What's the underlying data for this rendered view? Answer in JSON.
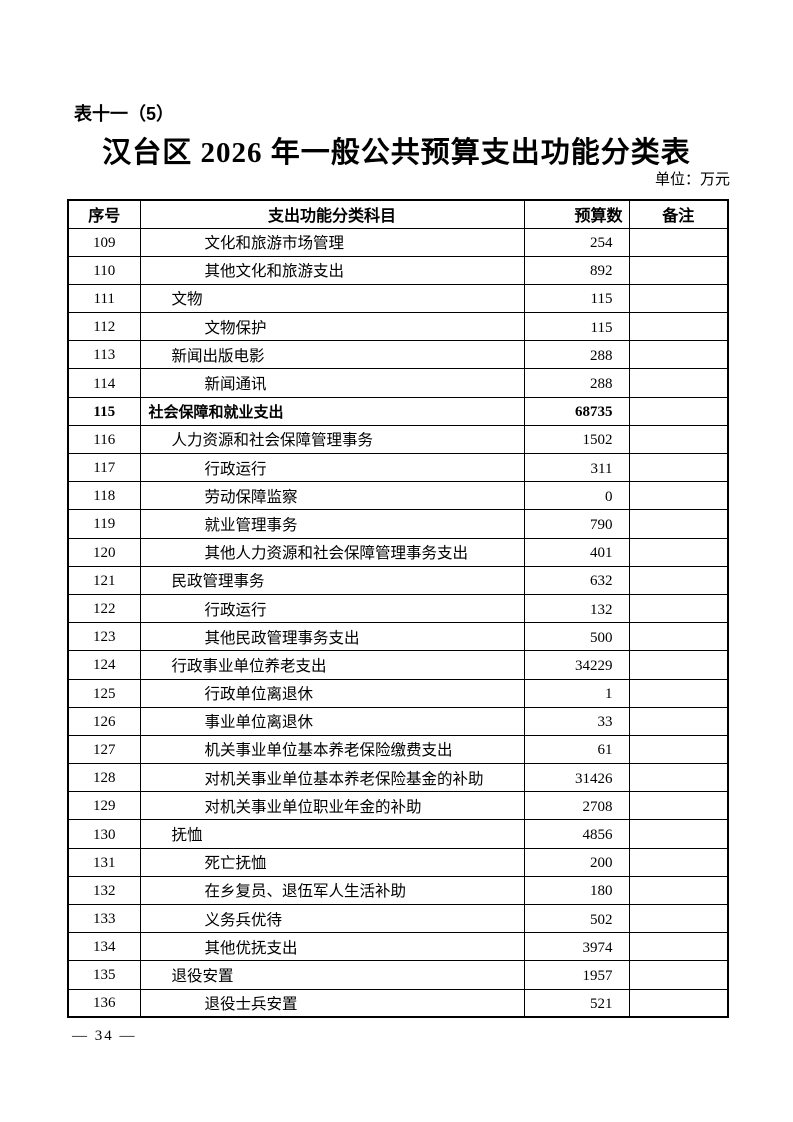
{
  "page": {
    "table_label": "表十一（5）",
    "title": "汉台区 2026 年一般公共预算支出功能分类表",
    "unit_note": "单位：万元",
    "page_number": "— 34 —"
  },
  "colors": {
    "text": "#000000",
    "background": "#ffffff",
    "border": "#000000"
  },
  "table": {
    "columns": [
      "序号",
      "支出功能分类科目",
      "预算数",
      "备注"
    ],
    "rows": [
      {
        "no": "109",
        "subject": "文化和旅游市场管理",
        "level": 2,
        "budget": "254",
        "remark": "",
        "bold": false
      },
      {
        "no": "110",
        "subject": "其他文化和旅游支出",
        "level": 2,
        "budget": "892",
        "remark": "",
        "bold": false
      },
      {
        "no": "111",
        "subject": "文物",
        "level": 1,
        "budget": "115",
        "remark": "",
        "bold": false
      },
      {
        "no": "112",
        "subject": "文物保护",
        "level": 2,
        "budget": "115",
        "remark": "",
        "bold": false
      },
      {
        "no": "113",
        "subject": "新闻出版电影",
        "level": 1,
        "budget": "288",
        "remark": "",
        "bold": false
      },
      {
        "no": "114",
        "subject": "新闻通讯",
        "level": 2,
        "budget": "288",
        "remark": "",
        "bold": false
      },
      {
        "no": "115",
        "subject": "社会保障和就业支出",
        "level": 0,
        "budget": "68735",
        "remark": "",
        "bold": true
      },
      {
        "no": "116",
        "subject": "人力资源和社会保障管理事务",
        "level": 1,
        "budget": "1502",
        "remark": "",
        "bold": false
      },
      {
        "no": "117",
        "subject": "行政运行",
        "level": 2,
        "budget": "311",
        "remark": "",
        "bold": false
      },
      {
        "no": "118",
        "subject": "劳动保障监察",
        "level": 2,
        "budget": "0",
        "remark": "",
        "bold": false
      },
      {
        "no": "119",
        "subject": "就业管理事务",
        "level": 2,
        "budget": "790",
        "remark": "",
        "bold": false
      },
      {
        "no": "120",
        "subject": "其他人力资源和社会保障管理事务支出",
        "level": 2,
        "budget": "401",
        "remark": "",
        "bold": false
      },
      {
        "no": "121",
        "subject": "民政管理事务",
        "level": 1,
        "budget": "632",
        "remark": "",
        "bold": false
      },
      {
        "no": "122",
        "subject": "行政运行",
        "level": 2,
        "budget": "132",
        "remark": "",
        "bold": false
      },
      {
        "no": "123",
        "subject": "其他民政管理事务支出",
        "level": 2,
        "budget": "500",
        "remark": "",
        "bold": false
      },
      {
        "no": "124",
        "subject": "行政事业单位养老支出",
        "level": 1,
        "budget": "34229",
        "remark": "",
        "bold": false
      },
      {
        "no": "125",
        "subject": "行政单位离退休",
        "level": 2,
        "budget": "1",
        "remark": "",
        "bold": false
      },
      {
        "no": "126",
        "subject": "事业单位离退休",
        "level": 2,
        "budget": "33",
        "remark": "",
        "bold": false
      },
      {
        "no": "127",
        "subject": "机关事业单位基本养老保险缴费支出",
        "level": 2,
        "budget": "61",
        "remark": "",
        "bold": false
      },
      {
        "no": "128",
        "subject": "对机关事业单位基本养老保险基金的补助",
        "level": 2,
        "budget": "31426",
        "remark": "",
        "bold": false
      },
      {
        "no": "129",
        "subject": "对机关事业单位职业年金的补助",
        "level": 2,
        "budget": "2708",
        "remark": "",
        "bold": false
      },
      {
        "no": "130",
        "subject": "抚恤",
        "level": 1,
        "budget": "4856",
        "remark": "",
        "bold": false
      },
      {
        "no": "131",
        "subject": "死亡抚恤",
        "level": 2,
        "budget": "200",
        "remark": "",
        "bold": false
      },
      {
        "no": "132",
        "subject": "在乡复员、退伍军人生活补助",
        "level": 2,
        "budget": "180",
        "remark": "",
        "bold": false
      },
      {
        "no": "133",
        "subject": "义务兵优待",
        "level": 2,
        "budget": "502",
        "remark": "",
        "bold": false
      },
      {
        "no": "134",
        "subject": "其他优抚支出",
        "level": 2,
        "budget": "3974",
        "remark": "",
        "bold": false
      },
      {
        "no": "135",
        "subject": "退役安置",
        "level": 1,
        "budget": "1957",
        "remark": "",
        "bold": false
      },
      {
        "no": "136",
        "subject": "退役士兵安置",
        "level": 2,
        "budget": "521",
        "remark": "",
        "bold": false
      }
    ]
  }
}
